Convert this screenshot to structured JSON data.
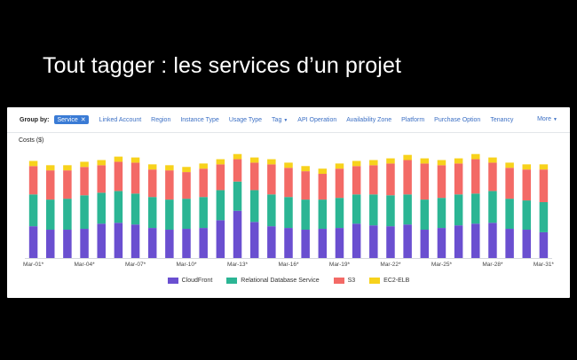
{
  "slide": {
    "title": "Tout tagger : les services d’un projet"
  },
  "groupby": {
    "label": "Group by:",
    "selected": "Service",
    "remove_icon": "close-icon",
    "options": [
      "Linked Account",
      "Region",
      "Instance Type",
      "Usage Type",
      "Tag",
      "API Operation",
      "Availability Zone",
      "Platform",
      "Purchase Option",
      "Tenancy"
    ],
    "more": "More",
    "accent": "#3a7bd5"
  },
  "costs_label": "Costs ($)",
  "chart_data": {
    "type": "bar",
    "stacked": true,
    "categories": [
      "Mar-01*",
      "Mar-02*",
      "Mar-03*",
      "Mar-04*",
      "Mar-05*",
      "Mar-06*",
      "Mar-07*",
      "Mar-08*",
      "Mar-09*",
      "Mar-10*",
      "Mar-11*",
      "Mar-12*",
      "Mar-13*",
      "Mar-14*",
      "Mar-15*",
      "Mar-16*",
      "Mar-17*",
      "Mar-18*",
      "Mar-19*",
      "Mar-20*",
      "Mar-21*",
      "Mar-22*",
      "Mar-23*",
      "Mar-24*",
      "Mar-25*",
      "Mar-26*",
      "Mar-27*",
      "Mar-28*",
      "Mar-29*",
      "Mar-30*",
      "Mar-31*"
    ],
    "tick_labels": [
      "Mar-01*",
      "Mar-04*",
      "Mar-07*",
      "Mar-10*",
      "Mar-13*",
      "Mar-16*",
      "Mar-19*",
      "Mar-22*",
      "Mar-25*",
      "Mar-28*",
      "Mar-31*"
    ],
    "series": [
      {
        "name": "CloudFront",
        "color": "#6a4fd0",
        "values": [
          37,
          33,
          33,
          34,
          40,
          41,
          39,
          35,
          33,
          34,
          35,
          44,
          55,
          42,
          37,
          35,
          33,
          34,
          35,
          40,
          38,
          37,
          39,
          33,
          35,
          38,
          40,
          41,
          34,
          33,
          30
        ]
      },
      {
        "name": "Relational Database Service",
        "color": "#2bb594",
        "values": [
          37,
          35,
          36,
          39,
          36,
          37,
          36,
          36,
          35,
          35,
          36,
          35,
          34,
          37,
          37,
          36,
          35,
          34,
          35,
          34,
          36,
          36,
          35,
          35,
          35,
          36,
          35,
          37,
          35,
          34,
          35
        ]
      },
      {
        "name": "S3",
        "color": "#f36a66",
        "values": [
          33,
          34,
          33,
          33,
          32,
          34,
          36,
          32,
          34,
          31,
          33,
          30,
          26,
          32,
          35,
          34,
          33,
          30,
          34,
          33,
          34,
          37,
          40,
          42,
          38,
          36,
          40,
          33,
          36,
          36,
          38
        ]
      },
      {
        "name": "EC2-ELB",
        "color": "#f7d21c",
        "values": [
          6,
          6,
          6,
          6,
          6,
          6,
          6,
          6,
          6,
          6,
          6,
          6,
          6,
          6,
          6,
          6,
          6,
          6,
          6,
          6,
          6,
          6,
          6,
          6,
          6,
          6,
          6,
          6,
          6,
          6,
          6
        ]
      }
    ],
    "ylim": [
      0,
      130
    ],
    "grid": false,
    "legend_position": "bottom"
  }
}
